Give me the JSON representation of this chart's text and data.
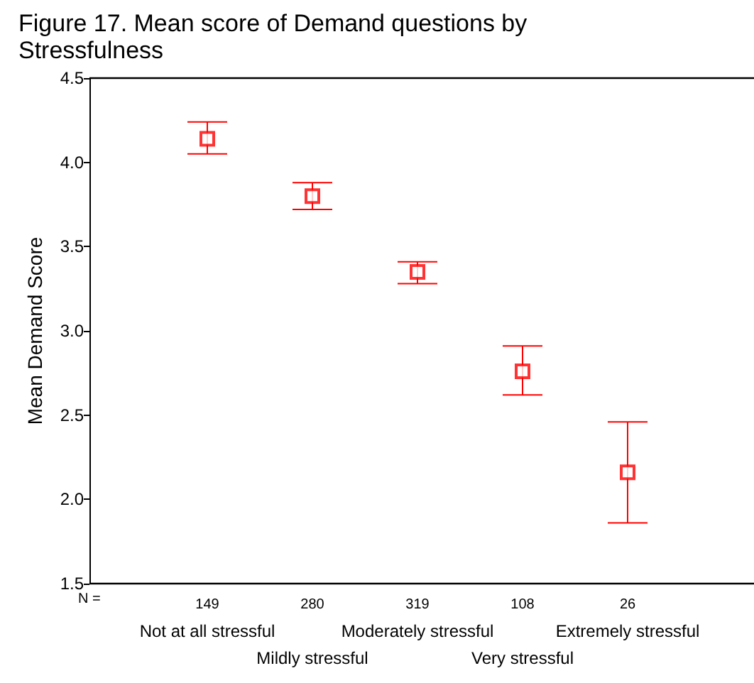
{
  "chart_data": {
    "type": "scatter",
    "title": "Figure 17. Mean score of Demand questions by Stressfulness",
    "ylabel": "Mean Demand Score",
    "categories": [
      "Not at all stressful",
      "Mildly stressful",
      "Moderately stressful",
      "Very stressful",
      "Extremely stressful"
    ],
    "series": [
      {
        "color": "#ff0000",
        "values": [
          4.14,
          3.8,
          3.35,
          2.76,
          2.16
        ],
        "errors": [
          [
            4.05,
            4.24
          ],
          [
            3.72,
            3.88
          ],
          [
            3.28,
            3.41
          ],
          [
            2.62,
            2.91
          ],
          [
            1.86,
            2.46
          ]
        ]
      }
    ],
    "ylim": [
      1.5,
      4.5
    ],
    "yticks": [
      {
        "value": 1.5,
        "label": "1.5"
      },
      {
        "value": 2,
        "label": "2.0"
      },
      {
        "value": 2.5,
        "label": "2.5"
      },
      {
        "value": 3,
        "label": "3.0"
      },
      {
        "value": 3.5,
        "label": "3.5"
      },
      {
        "value": 4,
        "label": "4.0"
      },
      {
        "value": 4.5,
        "label": "4.5"
      }
    ],
    "marker": "square",
    "grid": false,
    "annotations": [
      "N =",
      "149",
      "280",
      "319",
      "108",
      "26"
    ]
  }
}
